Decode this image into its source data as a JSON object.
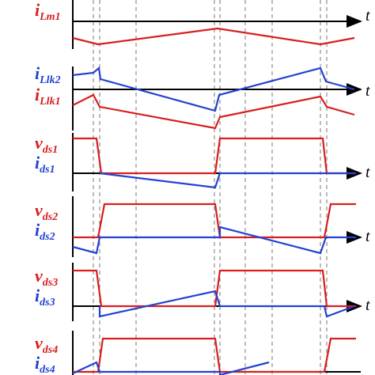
{
  "labels": [
    {
      "main": "i",
      "sub": "Lm1"
    },
    {
      "main": "i",
      "sub": "Llk2"
    },
    {
      "main": "i",
      "sub": "Llk1"
    },
    {
      "main": "v",
      "sub": "ds1"
    },
    {
      "main": "i",
      "sub": "ds1"
    },
    {
      "main": "v",
      "sub": "ds2"
    },
    {
      "main": "i",
      "sub": "ds2"
    },
    {
      "main": "v",
      "sub": "ds3"
    },
    {
      "main": "i",
      "sub": "ds3"
    },
    {
      "main": "v",
      "sub": "ds4"
    },
    {
      "main": "i",
      "sub": "ds4"
    }
  ],
  "time_axes": [
    "t",
    "t",
    "t",
    "t",
    "t"
  ]
}
